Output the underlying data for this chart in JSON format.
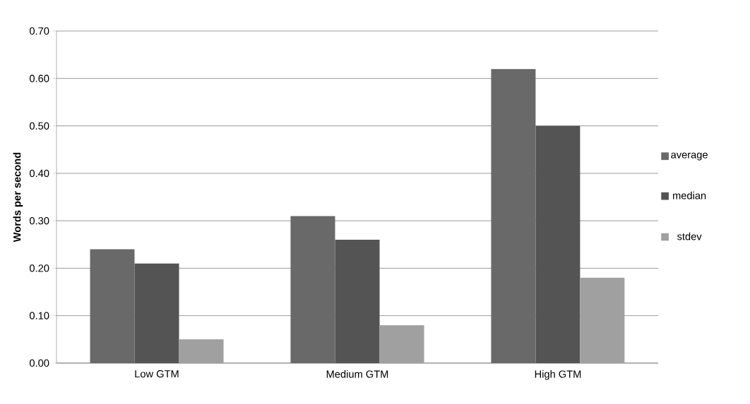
{
  "chart_data": {
    "type": "bar",
    "ylabel": "Words per second",
    "categories": [
      "Low GTM",
      "Medium GTM",
      "High GTM"
    ],
    "series": [
      {
        "name": "average",
        "color": "#696969",
        "values": [
          0.24,
          0.31,
          0.62
        ]
      },
      {
        "name": "median",
        "color": "#545454",
        "values": [
          0.21,
          0.26,
          0.5
        ]
      },
      {
        "name": "stdev",
        "color": "#a0a0a0",
        "values": [
          0.05,
          0.08,
          0.18
        ]
      }
    ],
    "ylim": [
      0,
      0.7
    ],
    "yticks": [
      {
        "value": 0,
        "label": "0.00"
      },
      {
        "value": 0.1,
        "label": "0.10"
      },
      {
        "value": 0.2,
        "label": "0.20"
      },
      {
        "value": 0.3,
        "label": "0.30"
      },
      {
        "value": 0.4,
        "label": "0.40"
      },
      {
        "value": 0.5,
        "label": "0.50"
      },
      {
        "value": 0.6,
        "label": "0.60"
      },
      {
        "value": 0.7,
        "label": "0.70"
      }
    ],
    "grid": "y",
    "legend": "right"
  }
}
